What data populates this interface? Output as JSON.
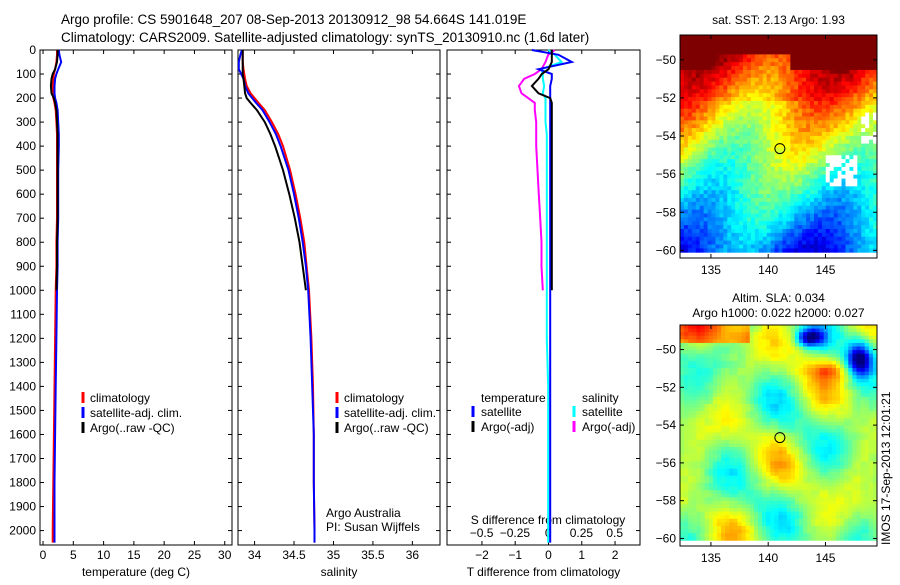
{
  "title_line1": "Argo profile: CS 5901648_207 08-Sep-2013 20130912_98 54.664S 141.019E",
  "title_line2": "Climatology: CARS2009. Satellite-adjusted climatology: synTS_20130910.nc (1.6d later)",
  "colors": {
    "climatology": "#ff0000",
    "satellite": "#0000ff",
    "argo": "#000000",
    "sal_satellite": "#00ffff",
    "sal_argo": "#ff00ff"
  },
  "chart_data": [
    {
      "type": "line",
      "id": "temperature",
      "xlabel": "temperature (deg C)",
      "ylabel": "",
      "xlim": [
        -0.5,
        31.2
      ],
      "ylim": [
        0,
        2060
      ],
      "xticks": [
        0,
        5,
        10,
        15,
        20,
        25,
        30
      ],
      "yticks": [
        0,
        100,
        200,
        300,
        400,
        500,
        600,
        700,
        800,
        900,
        1000,
        1100,
        1200,
        1300,
        1400,
        1500,
        1600,
        1700,
        1800,
        1900,
        2000
      ],
      "depth": [
        0,
        20,
        50,
        80,
        100,
        120,
        150,
        180,
        200,
        220,
        250,
        300,
        350,
        400,
        500,
        600,
        700,
        800,
        900,
        1000,
        1200,
        1400,
        1600,
        1800,
        2000,
        2050
      ],
      "series": [
        {
          "name": "climatology",
          "color": "#ff0000",
          "values": [
            2.3,
            2.3,
            2.2,
            2.0,
            1.8,
            1.7,
            1.6,
            1.6,
            1.7,
            1.9,
            2.1,
            2.2,
            2.3,
            2.3,
            2.3,
            2.3,
            2.3,
            2.2,
            2.2,
            2.1,
            2.0,
            1.9,
            1.8,
            1.7,
            1.6,
            1.6
          ]
        },
        {
          "name": "satellite-adj. clim.",
          "color": "#0000ff",
          "values": [
            2.6,
            2.7,
            3.0,
            2.5,
            2.2,
            2.0,
            1.9,
            1.9,
            2.0,
            2.2,
            2.4,
            2.5,
            2.6,
            2.6,
            2.5,
            2.5,
            2.5,
            2.4,
            2.4,
            2.3,
            2.2,
            2.1,
            2.0,
            1.9,
            1.9,
            1.9
          ]
        },
        {
          "name": "Argo(..raw -QC)",
          "color": "#000000",
          "values": [
            2.4,
            2.4,
            2.3,
            2.0,
            1.6,
            1.4,
            1.3,
            1.4,
            1.8,
            2.0,
            2.2,
            2.3,
            2.4,
            2.4,
            2.4,
            2.4,
            2.4,
            2.3,
            2.3,
            2.2
          ]
        }
      ],
      "legend": "center-right"
    },
    {
      "type": "line",
      "id": "salinity",
      "xlabel": "salinity",
      "xlim": [
        33.79,
        36.35
      ],
      "ylim": [
        0,
        2060
      ],
      "xticks": [
        34,
        34.5,
        35,
        35.5,
        36
      ],
      "depth": [
        0,
        20,
        50,
        80,
        100,
        120,
        150,
        180,
        200,
        220,
        250,
        300,
        350,
        400,
        500,
        600,
        700,
        800,
        900,
        1000,
        1200,
        1400,
        1600,
        1800,
        2000,
        2050
      ],
      "series": [
        {
          "name": "climatology",
          "color": "#ff0000",
          "values": [
            33.85,
            33.85,
            33.85,
            33.86,
            33.87,
            33.88,
            33.9,
            33.95,
            34.0,
            34.05,
            34.13,
            34.22,
            34.3,
            34.36,
            34.45,
            34.52,
            34.58,
            34.63,
            34.66,
            34.69,
            34.72,
            34.74,
            34.75,
            34.75,
            34.76,
            34.76
          ]
        },
        {
          "name": "satellite-adj. clim.",
          "color": "#0000ff",
          "values": [
            33.84,
            33.82,
            33.8,
            33.8,
            33.83,
            33.86,
            33.88,
            33.92,
            33.97,
            34.02,
            34.1,
            34.19,
            34.27,
            34.33,
            34.43,
            34.5,
            34.56,
            34.61,
            34.65,
            34.68,
            34.71,
            34.73,
            34.75,
            34.75,
            34.76,
            34.76
          ]
        },
        {
          "name": "Argo(..raw -QC)",
          "color": "#000000",
          "values": [
            33.85,
            33.85,
            33.85,
            33.85,
            33.85,
            33.86,
            33.87,
            33.88,
            33.9,
            33.95,
            34.03,
            34.13,
            34.2,
            34.26,
            34.36,
            34.44,
            34.51,
            34.57,
            34.61,
            34.65
          ]
        }
      ],
      "annotation_line1": "Argo Australia",
      "annotation_line2": "PI: Susan Wijffels"
    },
    {
      "type": "line",
      "id": "difference",
      "xlabel": "T difference from climatology",
      "xlabel_top": "S difference from climatology",
      "xlim": [
        -3.05,
        2.75
      ],
      "ylim": [
        0,
        2060
      ],
      "xticks": [
        -2,
        -1,
        0,
        1,
        2
      ],
      "sxlim": [
        -0.76,
        0.69
      ],
      "sxticks": [
        -0.5,
        -0.25,
        0,
        0.25,
        0.5
      ],
      "depth": [
        0,
        20,
        50,
        80,
        100,
        120,
        150,
        180,
        200,
        220,
        250,
        300,
        350,
        400,
        500,
        600,
        700,
        800,
        900,
        1000,
        1200,
        1400,
        1600,
        1800,
        2000,
        2050
      ],
      "legend_temperature": "temperature",
      "legend_salinity": "salinity",
      "series": [
        {
          "name": "satellite",
          "group": "temperature",
          "axis": "T",
          "color": "#0000ff",
          "values": [
            -0.5,
            0.3,
            0.7,
            -0.3,
            0.1,
            0.1,
            0.05,
            0.05,
            0.05,
            0.05,
            0.05,
            0.05,
            0.05,
            0.05,
            0.05,
            0.05,
            0.05,
            0.05,
            0.05,
            0.05,
            0.05,
            0.05,
            0.05,
            0.05,
            0.05,
            0.05
          ]
        },
        {
          "name": "Argo(-adj)",
          "group": "temperature",
          "axis": "T",
          "color": "#000000",
          "values": [
            0.1,
            0.1,
            0.1,
            0,
            -0.2,
            -0.3,
            -0.5,
            -0.3,
            0.05,
            0.1,
            0.1,
            0.1,
            0.1,
            0.1,
            0.1,
            0.1,
            0.1,
            0.1,
            0.1,
            0.1
          ]
        },
        {
          "name": "satellite",
          "group": "salinity",
          "axis": "S",
          "color": "#00ffff",
          "values": [
            0,
            0.05,
            0.1,
            -0.05,
            -0.04,
            -0.04,
            -0.03,
            -0.04,
            -0.02,
            -0.02,
            -0.02,
            -0.02,
            -0.01,
            -0.01,
            -0.01,
            -0.01,
            -0.01,
            -0.01,
            -0.01,
            -0.01,
            -0.01,
            0,
            0,
            0,
            0,
            0
          ]
        },
        {
          "name": "Argo(-adj)",
          "group": "salinity",
          "axis": "S",
          "color": "#ff00ff",
          "values": [
            0.05,
            0,
            -0.02,
            -0.05,
            -0.1,
            -0.18,
            -0.22,
            -0.2,
            -0.15,
            -0.1,
            -0.1,
            -0.09,
            -0.09,
            -0.09,
            -0.08,
            -0.07,
            -0.06,
            -0.05,
            -0.05,
            -0.04
          ]
        }
      ]
    },
    {
      "type": "heatmap",
      "id": "sst-map",
      "title": "sat. SST: 2.13  Argo: 1.93",
      "xlim": [
        132.3,
        149.5
      ],
      "ylim": [
        -60.4,
        -48.7
      ],
      "xticks": [
        135,
        140,
        145
      ],
      "yticks": [
        -50,
        -52,
        -54,
        -56,
        -58,
        -60
      ],
      "float_position": {
        "lon": 141.02,
        "lat": -54.66
      }
    },
    {
      "type": "heatmap",
      "id": "sla-map",
      "title_line1": "Altim. SLA: 0.034",
      "title_line2": "Argo h1000: 0.022 h2000: 0.027",
      "side_label": "IMOS 17-Sep-2013 12:01:21",
      "xlim": [
        132.3,
        149.5
      ],
      "ylim": [
        -60.4,
        -48.7
      ],
      "xticks": [
        135,
        140,
        145
      ],
      "yticks": [
        -50,
        -52,
        -54,
        -56,
        -58,
        -60
      ],
      "float_position": {
        "lon": 141.02,
        "lat": -54.66
      }
    }
  ]
}
